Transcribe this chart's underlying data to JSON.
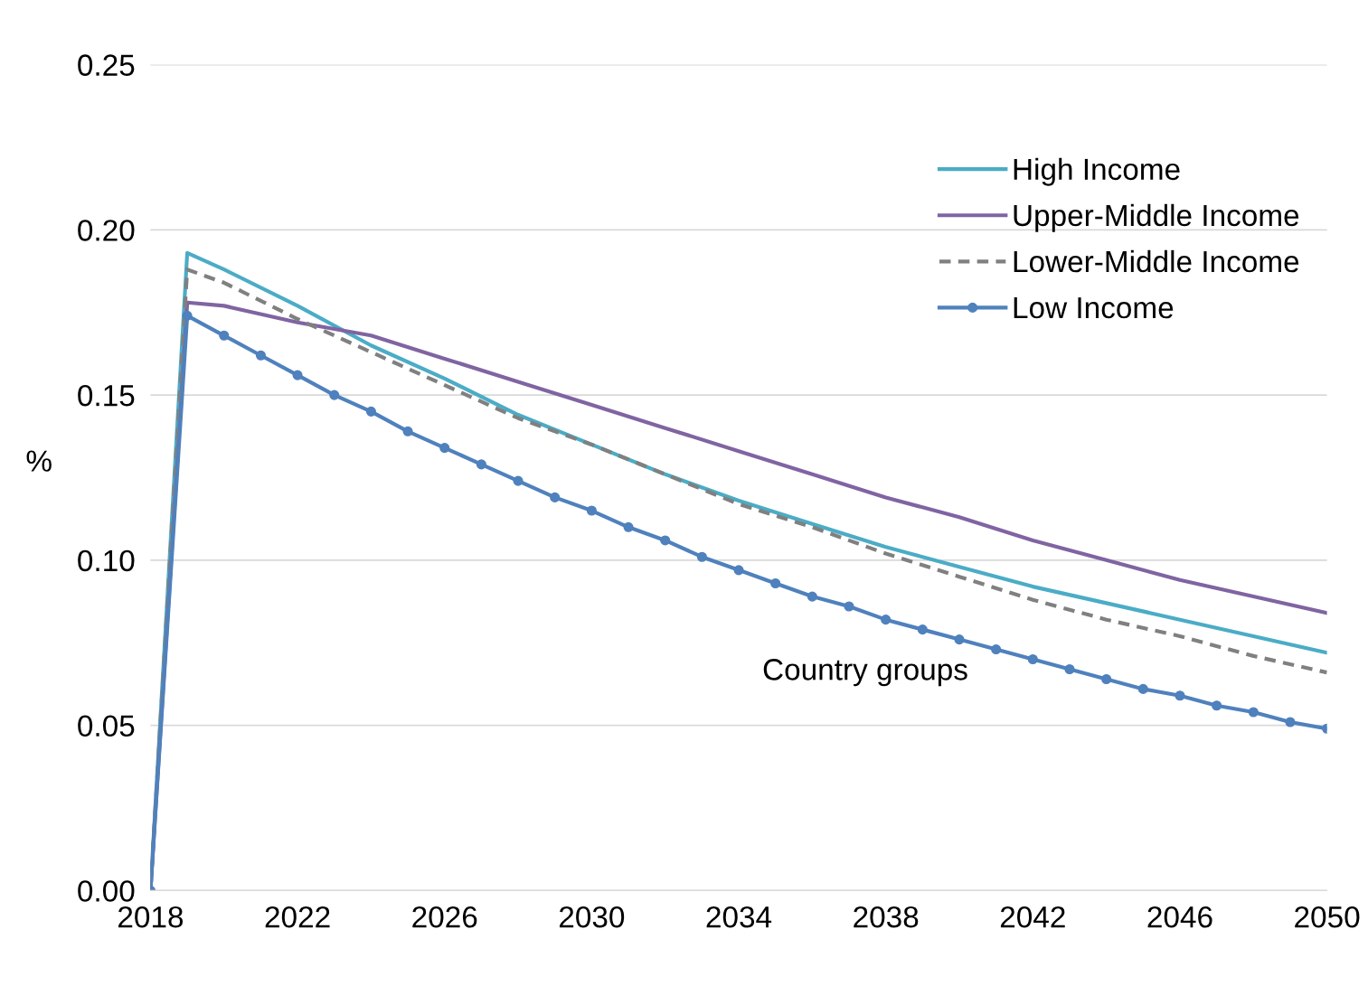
{
  "chart_data": {
    "type": "line",
    "ylabel": "%",
    "xlim": [
      2018,
      2050
    ],
    "xticks": [
      2018,
      2022,
      2026,
      2030,
      2034,
      2038,
      2042,
      2046,
      2050
    ],
    "ylim": [
      0,
      0.25
    ],
    "yticks": [
      {
        "value": 0,
        "label": "0.00"
      },
      {
        "value": 0.05,
        "label": "0.05"
      },
      {
        "value": 0.1,
        "label": "0.10"
      },
      {
        "value": 0.15,
        "label": "0.15"
      },
      {
        "value": 0.2,
        "label": "0.20"
      },
      {
        "value": 0.25,
        "label": "0.25"
      }
    ],
    "grid": "y",
    "legend": "top right",
    "annotations": [
      "Country groups"
    ],
    "series": [
      {
        "name": "High Income",
        "color": "#4bacc6",
        "line_style": "solid",
        "marker": "none",
        "x": [
          2018,
          2019,
          2020,
          2022,
          2024,
          2026,
          2028,
          2030,
          2032,
          2034,
          2036,
          2038,
          2040,
          2042,
          2044,
          2046,
          2048,
          2050
        ],
        "values": [
          0,
          0.193,
          0.188,
          0.177,
          0.165,
          0.155,
          0.144,
          0.135,
          0.126,
          0.118,
          0.111,
          0.104,
          0.098,
          0.092,
          0.087,
          0.082,
          0.077,
          0.072
        ]
      },
      {
        "name": "Upper-Middle Income",
        "color": "#8064a2",
        "line_style": "solid",
        "marker": "none",
        "x": [
          2018,
          2019,
          2020,
          2022,
          2024,
          2026,
          2028,
          2030,
          2032,
          2034,
          2036,
          2038,
          2040,
          2042,
          2044,
          2046,
          2048,
          2050
        ],
        "values": [
          0,
          0.178,
          0.177,
          0.172,
          0.168,
          0.161,
          0.154,
          0.147,
          0.14,
          0.133,
          0.126,
          0.119,
          0.113,
          0.106,
          0.1,
          0.094,
          0.089,
          0.084
        ]
      },
      {
        "name": "Lower-Middle Income",
        "color": "#808080",
        "line_style": "dashed",
        "marker": "none",
        "x": [
          2018,
          2019,
          2020,
          2022,
          2024,
          2026,
          2028,
          2030,
          2032,
          2034,
          2036,
          2038,
          2040,
          2042,
          2044,
          2046,
          2048,
          2050
        ],
        "values": [
          0,
          0.188,
          0.184,
          0.173,
          0.163,
          0.153,
          0.143,
          0.135,
          0.126,
          0.117,
          0.11,
          0.102,
          0.095,
          0.088,
          0.082,
          0.077,
          0.071,
          0.066
        ]
      },
      {
        "name": "Low Income",
        "color": "#4f81bd",
        "line_style": "solid",
        "marker": "circle",
        "x": [
          2018,
          2019,
          2020,
          2021,
          2022,
          2023,
          2024,
          2025,
          2026,
          2027,
          2028,
          2029,
          2030,
          2031,
          2032,
          2033,
          2034,
          2035,
          2036,
          2037,
          2038,
          2039,
          2040,
          2041,
          2042,
          2043,
          2044,
          2045,
          2046,
          2047,
          2048,
          2049,
          2050
        ],
        "values": [
          0,
          0.174,
          0.168,
          0.162,
          0.156,
          0.15,
          0.145,
          0.139,
          0.134,
          0.129,
          0.124,
          0.119,
          0.115,
          0.11,
          0.106,
          0.101,
          0.097,
          0.093,
          0.089,
          0.086,
          0.082,
          0.079,
          0.076,
          0.073,
          0.07,
          0.067,
          0.064,
          0.061,
          0.059,
          0.056,
          0.054,
          0.051,
          0.049
        ]
      }
    ]
  }
}
